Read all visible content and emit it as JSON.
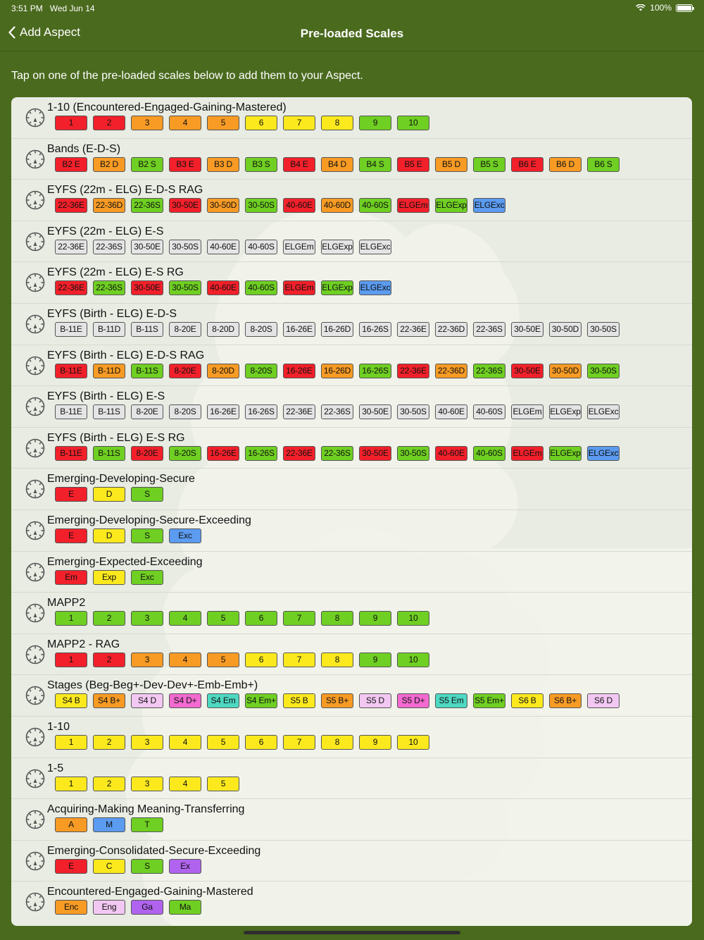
{
  "status_bar": {
    "time": "3:51 PM",
    "date": "Wed Jun 14",
    "battery": "100%",
    "battery_level": 1.0
  },
  "nav": {
    "back_label": "Add Aspect",
    "title": "Pre-loaded Scales"
  },
  "instruction": "Tap on one of the pre-loaded scales below to add them to your Aspect.",
  "colors": {
    "red": "#f2202a",
    "orange": "#f79b25",
    "yellow": "#fbe91e",
    "green": "#6fcf22",
    "blue": "#5b9bf0",
    "grey": "#e4e4e4",
    "lilac": "#f2c8f2",
    "pink": "#f26ad0",
    "teal": "#4ed8c2",
    "purple": "#b063ee",
    "background": "#4a6a1e",
    "card": "#e9ece3"
  },
  "scales": [
    {
      "title": "1-10 (Encountered-Engaged-Gaining-Mastered)",
      "grades": [
        {
          "label": "1",
          "color": "red"
        },
        {
          "label": "2",
          "color": "red"
        },
        {
          "label": "3",
          "color": "orange"
        },
        {
          "label": "4",
          "color": "orange"
        },
        {
          "label": "5",
          "color": "orange"
        },
        {
          "label": "6",
          "color": "yellow"
        },
        {
          "label": "7",
          "color": "yellow"
        },
        {
          "label": "8",
          "color": "yellow"
        },
        {
          "label": "9",
          "color": "green"
        },
        {
          "label": "10",
          "color": "green"
        }
      ]
    },
    {
      "title": "Bands (E-D-S)",
      "grades": [
        {
          "label": "B2 E",
          "color": "red"
        },
        {
          "label": "B2 D",
          "color": "orange"
        },
        {
          "label": "B2 S",
          "color": "green"
        },
        {
          "label": "B3 E",
          "color": "red"
        },
        {
          "label": "B3 D",
          "color": "orange"
        },
        {
          "label": "B3 S",
          "color": "green"
        },
        {
          "label": "B4 E",
          "color": "red"
        },
        {
          "label": "B4 D",
          "color": "orange"
        },
        {
          "label": "B4 S",
          "color": "green"
        },
        {
          "label": "B5 E",
          "color": "red"
        },
        {
          "label": "B5 D",
          "color": "orange"
        },
        {
          "label": "B5 S",
          "color": "green"
        },
        {
          "label": "B6 E",
          "color": "red"
        },
        {
          "label": "B6 D",
          "color": "orange"
        },
        {
          "label": "B6 S",
          "color": "green"
        }
      ]
    },
    {
      "title": "EYFS (22m - ELG) E-D-S RAG",
      "grades": [
        {
          "label": "22-36E",
          "color": "red"
        },
        {
          "label": "22-36D",
          "color": "orange"
        },
        {
          "label": "22-36S",
          "color": "green"
        },
        {
          "label": "30-50E",
          "color": "red"
        },
        {
          "label": "30-50D",
          "color": "orange"
        },
        {
          "label": "30-50S",
          "color": "green"
        },
        {
          "label": "40-60E",
          "color": "red"
        },
        {
          "label": "40-60D",
          "color": "orange"
        },
        {
          "label": "40-60S",
          "color": "green"
        },
        {
          "label": "ELGEm",
          "color": "red"
        },
        {
          "label": "ELGExp",
          "color": "green"
        },
        {
          "label": "ELGExc",
          "color": "blue"
        }
      ]
    },
    {
      "title": "EYFS (22m - ELG) E-S",
      "grades": [
        {
          "label": "22-36E",
          "color": "grey"
        },
        {
          "label": "22-36S",
          "color": "grey"
        },
        {
          "label": "30-50E",
          "color": "grey"
        },
        {
          "label": "30-50S",
          "color": "grey"
        },
        {
          "label": "40-60E",
          "color": "grey"
        },
        {
          "label": "40-60S",
          "color": "grey"
        },
        {
          "label": "ELGEm",
          "color": "grey"
        },
        {
          "label": "ELGExp",
          "color": "grey"
        },
        {
          "label": "ELGExc",
          "color": "grey"
        }
      ]
    },
    {
      "title": "EYFS (22m - ELG) E-S RG",
      "grades": [
        {
          "label": "22-36E",
          "color": "red"
        },
        {
          "label": "22-36S",
          "color": "green"
        },
        {
          "label": "30-50E",
          "color": "red"
        },
        {
          "label": "30-50S",
          "color": "green"
        },
        {
          "label": "40-60E",
          "color": "red"
        },
        {
          "label": "40-60S",
          "color": "green"
        },
        {
          "label": "ELGEm",
          "color": "red"
        },
        {
          "label": "ELGExp",
          "color": "green"
        },
        {
          "label": "ELGExc",
          "color": "blue"
        }
      ]
    },
    {
      "title": "EYFS (Birth - ELG) E-D-S",
      "grades": [
        {
          "label": "B-11E",
          "color": "grey"
        },
        {
          "label": "B-11D",
          "color": "grey"
        },
        {
          "label": "B-11S",
          "color": "grey"
        },
        {
          "label": "8-20E",
          "color": "grey"
        },
        {
          "label": "8-20D",
          "color": "grey"
        },
        {
          "label": "8-20S",
          "color": "grey"
        },
        {
          "label": "16-26E",
          "color": "grey"
        },
        {
          "label": "16-26D",
          "color": "grey"
        },
        {
          "label": "16-26S",
          "color": "grey"
        },
        {
          "label": "22-36E",
          "color": "grey"
        },
        {
          "label": "22-36D",
          "color": "grey"
        },
        {
          "label": "22-36S",
          "color": "grey"
        },
        {
          "label": "30-50E",
          "color": "grey"
        },
        {
          "label": "30-50D",
          "color": "grey"
        },
        {
          "label": "30-50S",
          "color": "grey"
        }
      ]
    },
    {
      "title": "EYFS (Birth - ELG) E-D-S RAG",
      "grades": [
        {
          "label": "B-11E",
          "color": "red"
        },
        {
          "label": "B-11D",
          "color": "orange"
        },
        {
          "label": "B-11S",
          "color": "green"
        },
        {
          "label": "8-20E",
          "color": "red"
        },
        {
          "label": "8-20D",
          "color": "orange"
        },
        {
          "label": "8-20S",
          "color": "green"
        },
        {
          "label": "16-26E",
          "color": "red"
        },
        {
          "label": "16-26D",
          "color": "orange"
        },
        {
          "label": "16-26S",
          "color": "green"
        },
        {
          "label": "22-36E",
          "color": "red"
        },
        {
          "label": "22-36D",
          "color": "orange"
        },
        {
          "label": "22-36S",
          "color": "green"
        },
        {
          "label": "30-50E",
          "color": "red"
        },
        {
          "label": "30-50D",
          "color": "orange"
        },
        {
          "label": "30-50S",
          "color": "green"
        }
      ]
    },
    {
      "title": "EYFS (Birth - ELG) E-S",
      "grades": [
        {
          "label": "B-11E",
          "color": "grey"
        },
        {
          "label": "B-11S",
          "color": "grey"
        },
        {
          "label": "8-20E",
          "color": "grey"
        },
        {
          "label": "8-20S",
          "color": "grey"
        },
        {
          "label": "16-26E",
          "color": "grey"
        },
        {
          "label": "16-26S",
          "color": "grey"
        },
        {
          "label": "22-36E",
          "color": "grey"
        },
        {
          "label": "22-36S",
          "color": "grey"
        },
        {
          "label": "30-50E",
          "color": "grey"
        },
        {
          "label": "30-50S",
          "color": "grey"
        },
        {
          "label": "40-60E",
          "color": "grey"
        },
        {
          "label": "40-60S",
          "color": "grey"
        },
        {
          "label": "ELGEm",
          "color": "grey"
        },
        {
          "label": "ELGExp",
          "color": "grey"
        },
        {
          "label": "ELGExc",
          "color": "grey"
        }
      ]
    },
    {
      "title": "EYFS (Birth - ELG) E-S RG",
      "grades": [
        {
          "label": "B-11E",
          "color": "red"
        },
        {
          "label": "B-11S",
          "color": "green"
        },
        {
          "label": "8-20E",
          "color": "red"
        },
        {
          "label": "8-20S",
          "color": "green"
        },
        {
          "label": "16-26E",
          "color": "red"
        },
        {
          "label": "16-26S",
          "color": "green"
        },
        {
          "label": "22-36E",
          "color": "red"
        },
        {
          "label": "22-36S",
          "color": "green"
        },
        {
          "label": "30-50E",
          "color": "red"
        },
        {
          "label": "30-50S",
          "color": "green"
        },
        {
          "label": "40-60E",
          "color": "red"
        },
        {
          "label": "40-60S",
          "color": "green"
        },
        {
          "label": "ELGEm",
          "color": "red"
        },
        {
          "label": "ELGExp",
          "color": "green"
        },
        {
          "label": "ELGExc",
          "color": "blue"
        }
      ]
    },
    {
      "title": "Emerging-Developing-Secure",
      "grades": [
        {
          "label": "E",
          "color": "red"
        },
        {
          "label": "D",
          "color": "yellow"
        },
        {
          "label": "S",
          "color": "green"
        }
      ]
    },
    {
      "title": "Emerging-Developing-Secure-Exceeding",
      "grades": [
        {
          "label": "E",
          "color": "red"
        },
        {
          "label": "D",
          "color": "yellow"
        },
        {
          "label": "S",
          "color": "green"
        },
        {
          "label": "Exc",
          "color": "blue"
        }
      ]
    },
    {
      "title": "Emerging-Expected-Exceeding",
      "grades": [
        {
          "label": "Em",
          "color": "red"
        },
        {
          "label": "Exp",
          "color": "yellow"
        },
        {
          "label": "Exc",
          "color": "green"
        }
      ]
    },
    {
      "title": "MAPP2",
      "grades": [
        {
          "label": "1",
          "color": "green"
        },
        {
          "label": "2",
          "color": "green"
        },
        {
          "label": "3",
          "color": "green"
        },
        {
          "label": "4",
          "color": "green"
        },
        {
          "label": "5",
          "color": "green"
        },
        {
          "label": "6",
          "color": "green"
        },
        {
          "label": "7",
          "color": "green"
        },
        {
          "label": "8",
          "color": "green"
        },
        {
          "label": "9",
          "color": "green"
        },
        {
          "label": "10",
          "color": "green"
        }
      ]
    },
    {
      "title": "MAPP2 - RAG",
      "grades": [
        {
          "label": "1",
          "color": "red"
        },
        {
          "label": "2",
          "color": "red"
        },
        {
          "label": "3",
          "color": "orange"
        },
        {
          "label": "4",
          "color": "orange"
        },
        {
          "label": "5",
          "color": "orange"
        },
        {
          "label": "6",
          "color": "yellow"
        },
        {
          "label": "7",
          "color": "yellow"
        },
        {
          "label": "8",
          "color": "yellow"
        },
        {
          "label": "9",
          "color": "green"
        },
        {
          "label": "10",
          "color": "green"
        }
      ]
    },
    {
      "title": "Stages (Beg-Beg+-Dev-Dev+-Emb-Emb+)",
      "grades": [
        {
          "label": "S4 B",
          "color": "yellow"
        },
        {
          "label": "S4 B+",
          "color": "orange"
        },
        {
          "label": "S4 D",
          "color": "lilac"
        },
        {
          "label": "S4 D+",
          "color": "pink"
        },
        {
          "label": "S4 Em",
          "color": "teal"
        },
        {
          "label": "S4 Em+",
          "color": "green"
        },
        {
          "label": "S5 B",
          "color": "yellow"
        },
        {
          "label": "S5 B+",
          "color": "orange"
        },
        {
          "label": "S5 D",
          "color": "lilac"
        },
        {
          "label": "S5 D+",
          "color": "pink"
        },
        {
          "label": "S5 Em",
          "color": "teal"
        },
        {
          "label": "S5 Em+",
          "color": "green"
        },
        {
          "label": "S6 B",
          "color": "yellow"
        },
        {
          "label": "S6 B+",
          "color": "orange"
        },
        {
          "label": "S6 D",
          "color": "lilac"
        }
      ]
    },
    {
      "title": "1-10",
      "grades": [
        {
          "label": "1",
          "color": "yellow"
        },
        {
          "label": "2",
          "color": "yellow"
        },
        {
          "label": "3",
          "color": "yellow"
        },
        {
          "label": "4",
          "color": "yellow"
        },
        {
          "label": "5",
          "color": "yellow"
        },
        {
          "label": "6",
          "color": "yellow"
        },
        {
          "label": "7",
          "color": "yellow"
        },
        {
          "label": "8",
          "color": "yellow"
        },
        {
          "label": "9",
          "color": "yellow"
        },
        {
          "label": "10",
          "color": "yellow"
        }
      ]
    },
    {
      "title": "1-5",
      "grades": [
        {
          "label": "1",
          "color": "yellow"
        },
        {
          "label": "2",
          "color": "yellow"
        },
        {
          "label": "3",
          "color": "yellow"
        },
        {
          "label": "4",
          "color": "yellow"
        },
        {
          "label": "5",
          "color": "yellow"
        }
      ]
    },
    {
      "title": "Acquiring-Making Meaning-Transferring",
      "grades": [
        {
          "label": "A",
          "color": "orange"
        },
        {
          "label": "M",
          "color": "blue"
        },
        {
          "label": "T",
          "color": "green"
        }
      ]
    },
    {
      "title": "Emerging-Consolidated-Secure-Exceeding",
      "grades": [
        {
          "label": "E",
          "color": "red"
        },
        {
          "label": "C",
          "color": "yellow"
        },
        {
          "label": "S",
          "color": "green"
        },
        {
          "label": "Ex",
          "color": "purple"
        }
      ]
    },
    {
      "title": "Encountered-Engaged-Gaining-Mastered",
      "grades": [
        {
          "label": "Enc",
          "color": "orange"
        },
        {
          "label": "Eng",
          "color": "lilac"
        },
        {
          "label": "Ga",
          "color": "purple"
        },
        {
          "label": "Ma",
          "color": "green"
        }
      ]
    }
  ]
}
